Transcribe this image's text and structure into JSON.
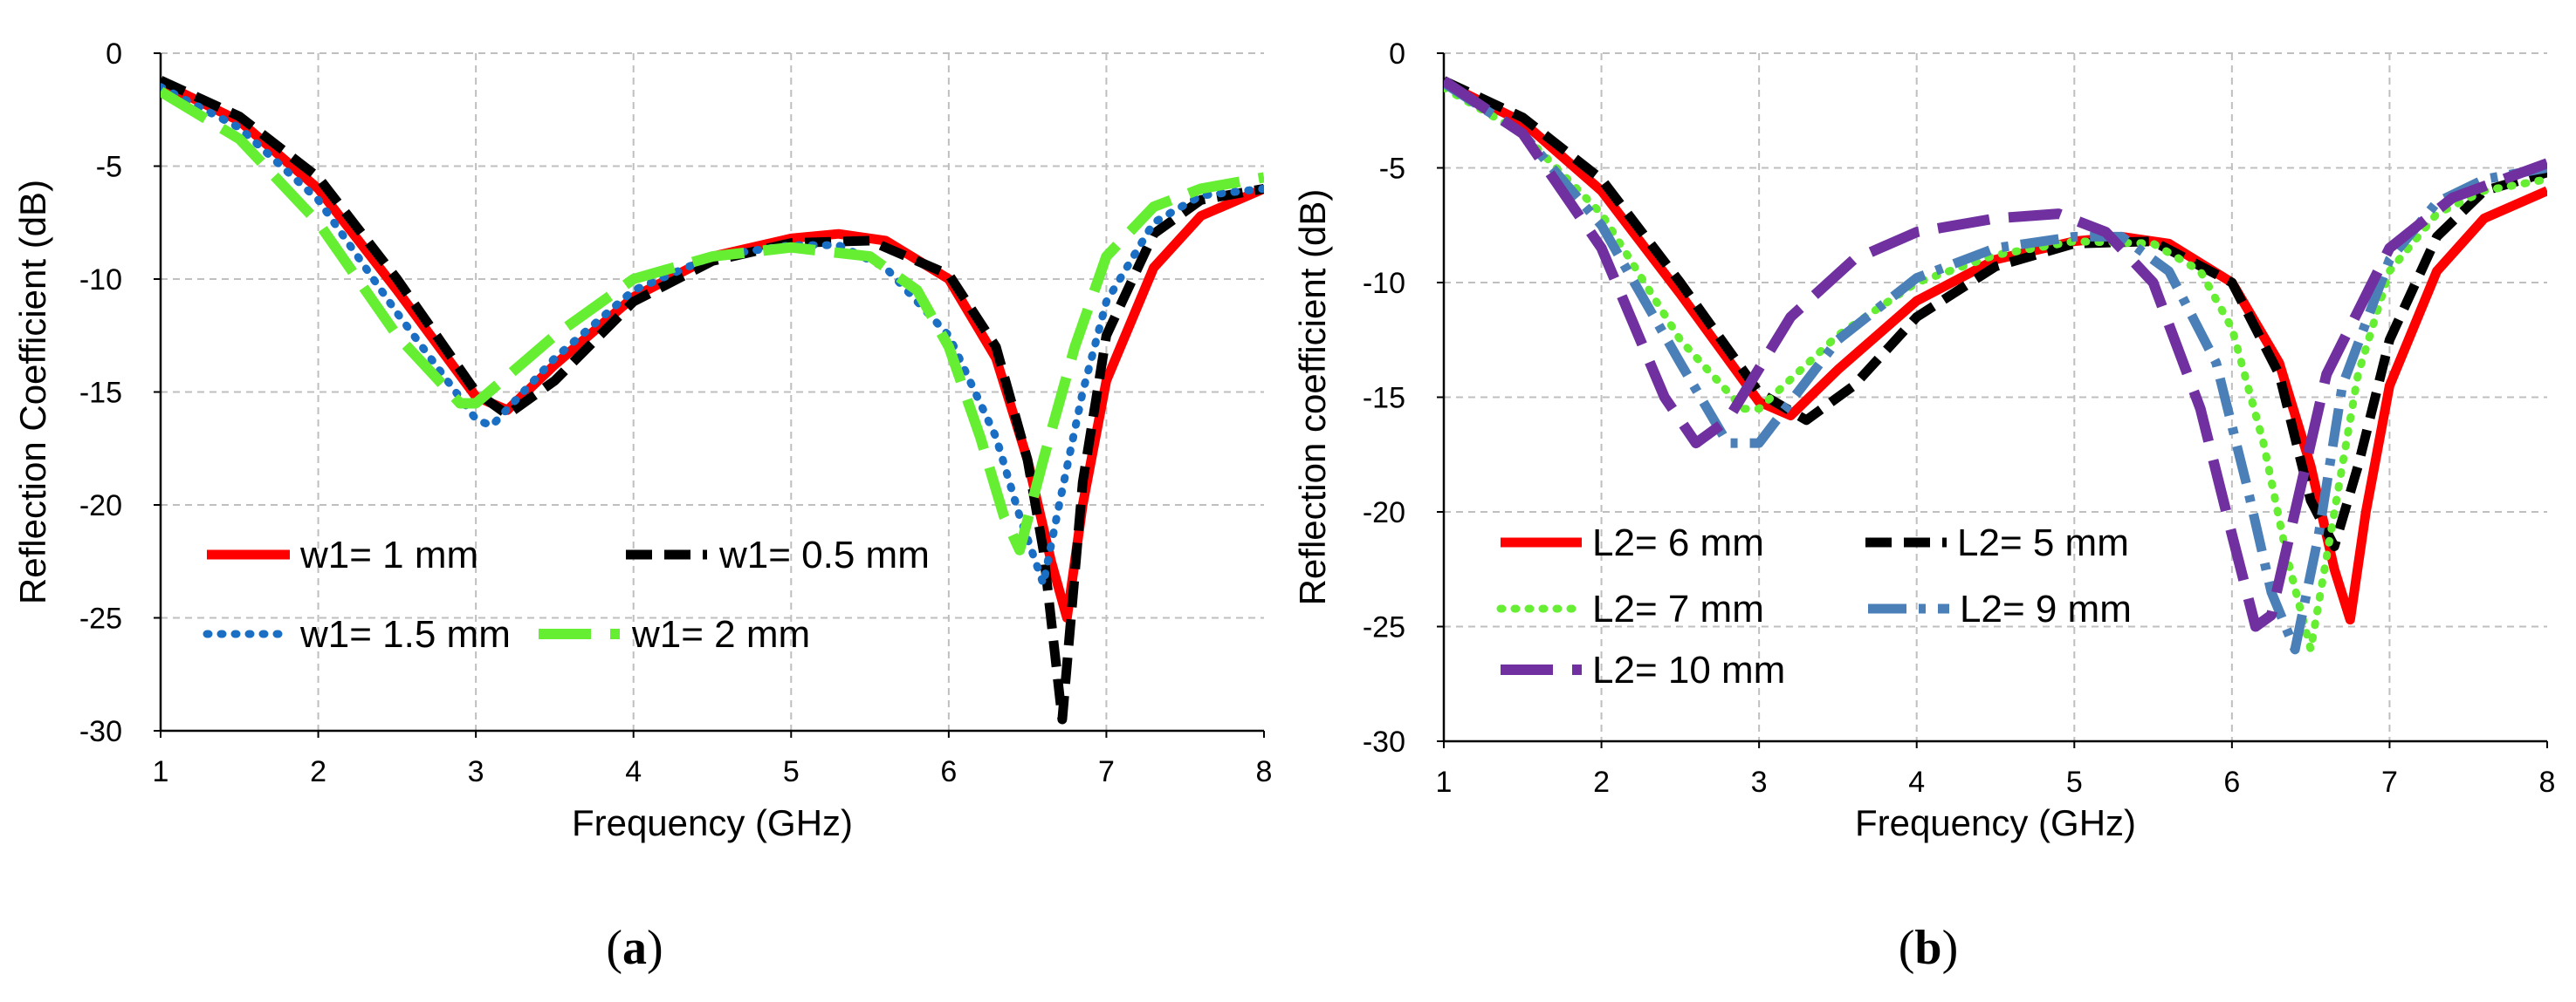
{
  "chart_data": [
    {
      "type": "line",
      "panel_label": "(a)",
      "panel_letter": "a",
      "xlabel": "Frequency (GHz)",
      "ylabel": "Reflection Coefficient (dB)",
      "xlim": [
        1,
        8
      ],
      "ylim": [
        -30,
        0
      ],
      "xticks": [
        "1",
        "2",
        "3",
        "4",
        "5",
        "6",
        "7",
        "8"
      ],
      "yticks": [
        "0",
        "-5",
        "-10",
        "-15",
        "-20",
        "-25",
        "-30"
      ],
      "grid": true,
      "legend_placement": "lower-left",
      "series": [
        {
          "name": "w1= 1 mm",
          "color": "#ff0000",
          "style": "solid",
          "x": [
            1.0,
            1.5,
            2.0,
            2.5,
            3.0,
            3.2,
            3.5,
            4.0,
            4.5,
            5.0,
            5.3,
            5.6,
            6.0,
            6.3,
            6.5,
            6.65,
            6.75,
            6.85,
            7.0,
            7.3,
            7.6,
            8.0
          ],
          "y": [
            -1.3,
            -3.0,
            -6.0,
            -10.5,
            -15.2,
            -15.8,
            -13.8,
            -10.8,
            -9.0,
            -8.2,
            -8.0,
            -8.3,
            -10.0,
            -13.5,
            -18.0,
            -22.5,
            -25.0,
            -20.0,
            -14.5,
            -9.5,
            -7.2,
            -6.0
          ]
        },
        {
          "name": "w1= 0.5 mm",
          "color": "#000000",
          "style": "dashed",
          "x": [
            1.0,
            1.5,
            2.0,
            2.5,
            3.0,
            3.2,
            3.5,
            4.0,
            4.5,
            5.0,
            5.5,
            6.0,
            6.3,
            6.5,
            6.6,
            6.72,
            6.85,
            7.0,
            7.3,
            7.6,
            8.0
          ],
          "y": [
            -1.2,
            -2.8,
            -5.5,
            -10.0,
            -15.0,
            -16.0,
            -14.5,
            -11.0,
            -9.2,
            -8.4,
            -8.3,
            -9.8,
            -13.0,
            -18.0,
            -22.0,
            -29.5,
            -19.0,
            -12.5,
            -8.0,
            -6.5,
            -6.0
          ]
        },
        {
          "name": "w1= 1.5 mm",
          "color": "#1a6fc4",
          "style": "dotted",
          "x": [
            1.0,
            1.5,
            2.0,
            2.5,
            3.0,
            3.1,
            3.5,
            4.0,
            4.5,
            5.0,
            5.3,
            5.6,
            6.0,
            6.3,
            6.45,
            6.6,
            6.7,
            6.85,
            7.0,
            7.3,
            7.6,
            8.0
          ],
          "y": [
            -1.5,
            -3.3,
            -6.5,
            -11.5,
            -16.2,
            -16.5,
            -13.5,
            -10.5,
            -9.0,
            -8.5,
            -8.5,
            -9.5,
            -12.5,
            -17.0,
            -20.5,
            -23.5,
            -20.0,
            -15.0,
            -11.0,
            -7.5,
            -6.3,
            -6.0
          ]
        },
        {
          "name": "w1= 2 mm",
          "color": "#66ee33",
          "style": "longdash",
          "x": [
            1.0,
            1.5,
            2.0,
            2.5,
            2.9,
            3.0,
            3.5,
            4.0,
            4.5,
            5.0,
            5.5,
            5.8,
            6.0,
            6.2,
            6.35,
            6.45,
            6.6,
            6.8,
            7.0,
            7.3,
            7.6,
            8.0
          ],
          "y": [
            -1.7,
            -3.8,
            -7.5,
            -12.5,
            -15.5,
            -15.5,
            -12.5,
            -10.0,
            -9.0,
            -8.6,
            -9.0,
            -10.5,
            -13.0,
            -17.0,
            -20.5,
            -22.0,
            -18.0,
            -13.0,
            -9.0,
            -6.8,
            -6.0,
            -5.5
          ]
        }
      ]
    },
    {
      "type": "line",
      "panel_label": "(b)",
      "panel_letter": "b",
      "xlabel": "Frequency (GHz)",
      "ylabel": "Reflection coefficient (dB)",
      "xlim": [
        1,
        8
      ],
      "ylim": [
        -30,
        0
      ],
      "xticks": [
        "1",
        "2",
        "3",
        "4",
        "5",
        "6",
        "7",
        "8"
      ],
      "yticks": [
        "0",
        "-5",
        "-10",
        "-15",
        "-20",
        "-25",
        "-30"
      ],
      "grid": true,
      "legend_placement": "lower-left",
      "series": [
        {
          "name": "L2= 6 mm",
          "color": "#ff0000",
          "style": "solid",
          "x": [
            1.0,
            1.5,
            2.0,
            2.5,
            3.0,
            3.2,
            3.5,
            4.0,
            4.5,
            5.0,
            5.3,
            5.6,
            6.0,
            6.3,
            6.5,
            6.65,
            6.75,
            6.85,
            7.0,
            7.3,
            7.6,
            8.0
          ],
          "y": [
            -1.3,
            -3.0,
            -6.0,
            -10.5,
            -15.2,
            -15.8,
            -13.8,
            -10.8,
            -9.0,
            -8.2,
            -8.0,
            -8.3,
            -10.0,
            -13.5,
            -18.0,
            -22.5,
            -24.7,
            -20.0,
            -14.5,
            -9.5,
            -7.2,
            -6.0
          ]
        },
        {
          "name": "L2= 5 mm",
          "color": "#000000",
          "style": "dashed",
          "x": [
            1.0,
            1.5,
            2.0,
            2.5,
            3.0,
            3.3,
            3.6,
            4.0,
            4.5,
            5.0,
            5.5,
            6.0,
            6.3,
            6.5,
            6.65,
            6.8,
            7.0,
            7.3,
            7.6,
            8.0
          ],
          "y": [
            -1.2,
            -2.8,
            -5.5,
            -10.0,
            -14.8,
            -16.0,
            -14.5,
            -11.5,
            -9.3,
            -8.3,
            -8.2,
            -10.0,
            -14.0,
            -19.5,
            -21.5,
            -18.0,
            -12.5,
            -8.0,
            -6.0,
            -5.2
          ]
        },
        {
          "name": "L2= 7 mm",
          "color": "#66ee33",
          "style": "dotted",
          "x": [
            1.0,
            1.5,
            2.0,
            2.5,
            2.9,
            3.0,
            3.5,
            4.0,
            4.5,
            5.0,
            5.5,
            5.8,
            6.0,
            6.2,
            6.35,
            6.5,
            6.65,
            6.8,
            7.0,
            7.3,
            7.6,
            8.0
          ],
          "y": [
            -1.5,
            -3.5,
            -7.0,
            -12.5,
            -15.5,
            -15.5,
            -12.3,
            -10.0,
            -8.8,
            -8.2,
            -8.3,
            -9.5,
            -12.0,
            -17.0,
            -22.0,
            -26.0,
            -20.0,
            -14.0,
            -9.5,
            -7.0,
            -6.0,
            -5.5
          ]
        },
        {
          "name": "L2= 9 mm",
          "color": "#4a7fb8",
          "style": "dashdot",
          "x": [
            1.0,
            1.5,
            2.0,
            2.5,
            2.8,
            3.0,
            3.5,
            4.0,
            4.5,
            5.0,
            5.3,
            5.6,
            5.9,
            6.1,
            6.25,
            6.4,
            6.55,
            6.7,
            7.0,
            7.3,
            7.6,
            8.0
          ],
          "y": [
            -1.3,
            -3.5,
            -7.5,
            -13.5,
            -17.0,
            -17.0,
            -12.5,
            -9.8,
            -8.5,
            -8.0,
            -8.0,
            -9.5,
            -13.5,
            -19.0,
            -23.5,
            -26.0,
            -21.0,
            -14.5,
            -9.0,
            -6.5,
            -5.5,
            -5.0
          ]
        },
        {
          "name": "L2= 10 mm",
          "color": "#7030a0",
          "style": "longdash",
          "x": [
            1.0,
            1.5,
            2.0,
            2.4,
            2.6,
            2.8,
            3.2,
            3.6,
            4.0,
            4.5,
            4.9,
            5.2,
            5.5,
            5.8,
            6.0,
            6.15,
            6.25,
            6.4,
            6.6,
            7.0,
            7.4,
            8.0
          ],
          "y": [
            -1.2,
            -3.5,
            -8.5,
            -15.0,
            -17.0,
            -16.0,
            -11.5,
            -9.0,
            -7.8,
            -7.2,
            -7.0,
            -7.8,
            -10.0,
            -15.5,
            -21.0,
            -25.0,
            -24.5,
            -20.0,
            -14.0,
            -8.5,
            -6.3,
            -4.8
          ]
        }
      ]
    }
  ]
}
